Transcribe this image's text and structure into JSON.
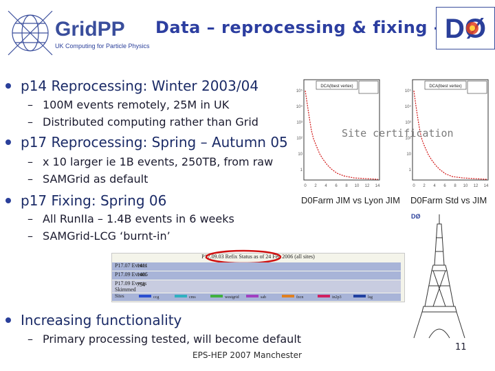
{
  "header": {
    "logo_text": "GridPP",
    "logo_subtext": "UK Computing for Particle Physics",
    "title": "Data – reprocessing & fixing - I"
  },
  "bullets": [
    {
      "text": "p14 Reprocessing: Winter 2003/04",
      "subs": [
        "100M events remotely, 25M in UK",
        "Distributed computing rather than Grid"
      ]
    },
    {
      "text": "p17 Reprocessing: Spring – Autumn 05",
      "subs": [
        "x 10 larger ie 1B events, 250TB,  from raw",
        "SAMGrid as default"
      ]
    },
    {
      "text": "p17 Fixing: Spring 06",
      "subs": [
        "All RunIIa – 1.4B events in 6 weeks",
        "SAMGrid-LCG ‘burnt-in’"
      ]
    },
    {
      "text": "Increasing functionality",
      "subs": [
        "Primary processing tested, will become default"
      ]
    }
  ],
  "plots": {
    "overlay_label": "Site certification",
    "left_caption": "D0Farm JIM vs Lyon JIM",
    "right_caption": "D0Farm Std vs JIM",
    "left_tag": "DCA(lbest vertex)",
    "right_tag": "DCA(lbest vertex)",
    "x_ticks": [
      "0",
      "2",
      "4",
      "6",
      "8",
      "10",
      "12",
      "14"
    ],
    "y_ticks": [
      "10⁵",
      "10⁴",
      "10³",
      "10²",
      "10",
      "1"
    ]
  },
  "status_table": {
    "title": "P17.09.03 Refix Status as of 24 Feb 2006 (all sites)",
    "rows": [
      {
        "label": "P17.07 Events",
        "value": "1411"
      },
      {
        "label": "P17.09 Events",
        "value": "1405"
      },
      {
        "label": "P17.09 Events Skimmed",
        "value": "754"
      }
    ],
    "sites_label": "Sites",
    "sites": [
      {
        "name": "ccg",
        "color": "#2a4fd0"
      },
      {
        "name": "cms",
        "color": "#30b0c0"
      },
      {
        "name": "westgrid",
        "color": "#40b040"
      },
      {
        "name": "sab",
        "color": "#a040c0"
      },
      {
        "name": "fzcn",
        "color": "#e08020"
      },
      {
        "name": "in2p3",
        "color": "#d02060"
      },
      {
        "name": "lsg",
        "color": "#2040a0"
      }
    ]
  },
  "footer": "EPS-HEP 2007 Manchester",
  "page_number": "11",
  "colors": {
    "title": "#2c3ea0",
    "accent": "#2a3f9a",
    "highlight_ring": "#d01010"
  }
}
